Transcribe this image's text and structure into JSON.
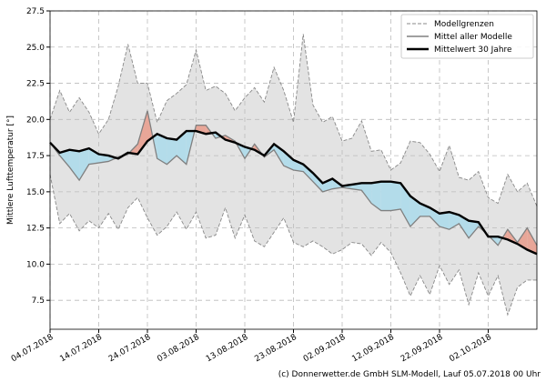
{
  "chart_data": {
    "type": "band-line",
    "y_label": "Mittlere Lufttemperatur [°]",
    "footer": "(c) Donnerwetter.de GmbH SLM-Modell, Lauf 05.07.2018 00 Uhr",
    "x": [
      "04.07.2018",
      "06.07.2018",
      "08.07.2018",
      "10.07.2018",
      "12.07.2018",
      "14.07.2018",
      "16.07.2018",
      "18.07.2018",
      "20.07.2018",
      "22.07.2018",
      "24.07.2018",
      "26.07.2018",
      "28.07.2018",
      "30.07.2018",
      "01.08.2018",
      "03.08.2018",
      "05.08.2018",
      "07.08.2018",
      "09.08.2018",
      "11.08.2018",
      "13.08.2018",
      "15.08.2018",
      "17.08.2018",
      "19.08.2018",
      "21.08.2018",
      "23.08.2018",
      "25.08.2018",
      "27.08.2018",
      "29.08.2018",
      "31.08.2018",
      "02.09.2018",
      "04.09.2018",
      "06.09.2018",
      "08.09.2018",
      "10.09.2018",
      "12.09.2018",
      "14.09.2018",
      "16.09.2018",
      "18.09.2018",
      "20.09.2018",
      "22.09.2018",
      "24.09.2018",
      "26.09.2018",
      "28.09.2018",
      "30.09.2018",
      "02.10.2018",
      "04.10.2018",
      "06.10.2018",
      "08.10.2018",
      "10.10.2018",
      "12.10.2018"
    ],
    "bounds": {
      "name": "Modellgrenzen",
      "color": "#888888",
      "fill": "#e3e3e3",
      "upper": [
        20.0,
        22.0,
        20.5,
        21.5,
        20.5,
        19.0,
        20.0,
        22.3,
        25.2,
        22.5,
        22.5,
        19.8,
        21.3,
        21.8,
        22.4,
        24.8,
        22.0,
        22.3,
        21.8,
        20.6,
        21.5,
        22.2,
        21.2,
        23.6,
        22.0,
        19.8,
        25.9,
        21.0,
        19.8,
        20.2,
        18.5,
        18.7,
        19.9,
        17.8,
        17.9,
        16.5,
        17.0,
        18.5,
        18.4,
        17.6,
        16.4,
        18.2,
        16.0,
        15.8,
        16.4,
        14.6,
        14.2,
        16.2,
        15.0,
        15.6,
        14.0
      ],
      "lower": [
        16.2,
        12.8,
        13.5,
        12.3,
        13.0,
        12.5,
        13.5,
        12.4,
        13.9,
        14.6,
        13.2,
        12.0,
        12.6,
        13.6,
        12.4,
        13.6,
        11.8,
        12.0,
        13.9,
        11.8,
        13.4,
        11.6,
        11.2,
        12.2,
        13.2,
        11.5,
        11.2,
        11.6,
        11.2,
        10.7,
        11.0,
        11.5,
        11.4,
        10.6,
        11.5,
        10.8,
        9.4,
        7.8,
        9.2,
        7.9,
        9.9,
        8.6,
        9.6,
        7.2,
        9.4,
        7.8,
        9.2,
        6.5,
        8.4,
        8.9,
        8.9
      ]
    },
    "series": [
      {
        "name": "Mittel aller Modelle",
        "color": "#808080",
        "values": [
          18.4,
          17.5,
          16.7,
          15.8,
          16.9,
          17.0,
          17.1,
          17.4,
          17.6,
          18.3,
          20.6,
          17.3,
          16.9,
          17.5,
          16.9,
          19.6,
          19.6,
          18.7,
          18.9,
          18.5,
          17.3,
          18.3,
          17.4,
          17.9,
          16.8,
          16.5,
          16.4,
          15.7,
          15.0,
          15.2,
          15.3,
          15.2,
          15.1,
          14.2,
          13.7,
          13.7,
          13.8,
          12.6,
          13.3,
          13.3,
          12.6,
          12.4,
          12.8,
          11.8,
          12.6,
          12.0,
          11.3,
          12.4,
          11.5,
          12.5,
          11.3
        ]
      },
      {
        "name": "Mittelwert 30 Jahre",
        "color": "#000000",
        "values": [
          18.4,
          17.7,
          17.9,
          17.8,
          18.0,
          17.6,
          17.5,
          17.3,
          17.7,
          17.6,
          18.5,
          19.0,
          18.7,
          18.6,
          19.2,
          19.2,
          19.0,
          19.1,
          18.6,
          18.4,
          18.1,
          17.9,
          17.5,
          18.3,
          17.8,
          17.2,
          16.9,
          16.3,
          15.6,
          15.9,
          15.4,
          15.5,
          15.6,
          15.6,
          15.7,
          15.7,
          15.6,
          14.7,
          14.2,
          13.9,
          13.5,
          13.6,
          13.4,
          13.0,
          12.9,
          11.9,
          11.9,
          11.7,
          11.4,
          11.0,
          10.7
        ]
      }
    ],
    "above_color": "#e8a698",
    "below_color": "#b3dcea",
    "xlim": [
      "04.07.2018",
      "12.10.2018"
    ],
    "xticks": [
      "04.07.2018",
      "14.07.2018",
      "24.07.2018",
      "03.08.2018",
      "13.08.2018",
      "23.08.2018",
      "02.09.2018",
      "12.09.2018",
      "22.09.2018",
      "02.10.2018"
    ],
    "ylim": [
      5.5,
      27.5
    ],
    "yticks": [
      7.5,
      {
        "value": 10,
        "label": "10.0"
      },
      12.5,
      {
        "value": 15,
        "label": "15.0"
      },
      17.5,
      {
        "value": 20,
        "label": "20.0"
      },
      22.5,
      {
        "value": 25,
        "label": "25.0"
      },
      27.5
    ],
    "grid": true,
    "legend": "upper-right"
  }
}
